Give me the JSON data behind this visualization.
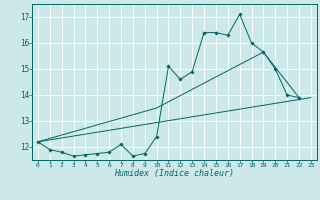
{
  "xlabel": "Humidex (Indice chaleur)",
  "bg_color": "#cce8e8",
  "line_color": "#006666",
  "grid_color": "#ffffff",
  "xlim": [
    -0.5,
    23.5
  ],
  "ylim": [
    11.5,
    17.5
  ],
  "xticks": [
    0,
    1,
    2,
    3,
    4,
    5,
    6,
    7,
    8,
    9,
    10,
    11,
    12,
    13,
    14,
    15,
    16,
    17,
    18,
    19,
    20,
    21,
    22,
    23
  ],
  "yticks": [
    12,
    13,
    14,
    15,
    16,
    17
  ],
  "line1_x": [
    0,
    1,
    2,
    3,
    4,
    5,
    6,
    7,
    8,
    9,
    10,
    11,
    12,
    13,
    14,
    15,
    16,
    17,
    18,
    19,
    20,
    21,
    22
  ],
  "line1_y": [
    12.2,
    11.9,
    11.8,
    11.65,
    11.7,
    11.75,
    11.8,
    12.1,
    11.65,
    11.75,
    12.4,
    15.1,
    14.6,
    14.9,
    16.4,
    16.4,
    16.3,
    17.1,
    16.0,
    15.65,
    15.0,
    14.0,
    13.9
  ],
  "line2_x": [
    0,
    23
  ],
  "line2_y": [
    12.2,
    13.9
  ],
  "line3_x": [
    0,
    10,
    19,
    22
  ],
  "line3_y": [
    12.2,
    13.5,
    15.65,
    13.9
  ]
}
